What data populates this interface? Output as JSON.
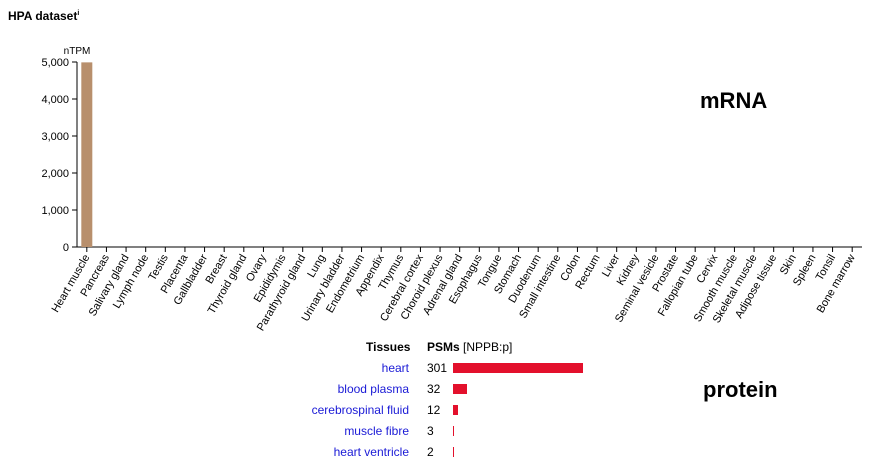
{
  "dataset_title": "HPA dataset",
  "dataset_info_marker": "i",
  "mrna_label": "mRNA",
  "protein_label": "protein",
  "chart_data": [
    {
      "type": "bar",
      "ylabel": "nTPM",
      "ylim": [
        0,
        5000
      ],
      "yticks": [
        "0",
        "1,000",
        "2,000",
        "3,000",
        "4,000",
        "5,000"
      ],
      "ytick_values": [
        0,
        1000,
        2000,
        3000,
        4000,
        5000
      ],
      "bar_color": "#b88f6c",
      "categories": [
        "Heart muscle",
        "Pancreas",
        "Salivary gland",
        "Lymph node",
        "Testis",
        "Placenta",
        "Gallbladder",
        "Breast",
        "Thyroid gland",
        "Ovary",
        "Epididymis",
        "Parathyroid gland",
        "Lung",
        "Urinary bladder",
        "Endometrium",
        "Appendix",
        "Thymus",
        "Cerebral cortex",
        "Choroid plexus",
        "Adrenal gland",
        "Esophagus",
        "Tongue",
        "Stomach",
        "Duodenum",
        "Small intestine",
        "Colon",
        "Rectum",
        "Liver",
        "Kidney",
        "Seminal vesicle",
        "Prostate",
        "Fallopian tube",
        "Cervix",
        "Smooth muscle",
        "Skeletal muscle",
        "Adipose tissue",
        "Skin",
        "Spleen",
        "Tonsil",
        "Bone marrow"
      ],
      "values": [
        4990,
        0,
        0,
        0,
        0,
        0,
        0,
        0,
        0,
        0,
        0,
        0,
        0,
        0,
        0,
        0,
        0,
        0,
        0,
        0,
        0,
        0,
        0,
        0,
        0,
        0,
        0,
        0,
        0,
        0,
        0,
        0,
        0,
        0,
        0,
        0,
        0,
        0,
        0,
        0
      ]
    },
    {
      "type": "bar",
      "orientation": "horizontal",
      "header_tissues": "Tissues",
      "header_psms": "PSMs",
      "header_psms_sub": "[NPPB:p]",
      "bar_color": "#e3102c",
      "categories": [
        "heart",
        "blood plasma",
        "cerebrospinal fluid",
        "muscle fibre",
        "heart ventricle"
      ],
      "values": [
        301,
        32,
        12,
        3,
        2
      ],
      "value_labels": [
        "301",
        "32",
        "12",
        "3",
        "2"
      ]
    }
  ]
}
